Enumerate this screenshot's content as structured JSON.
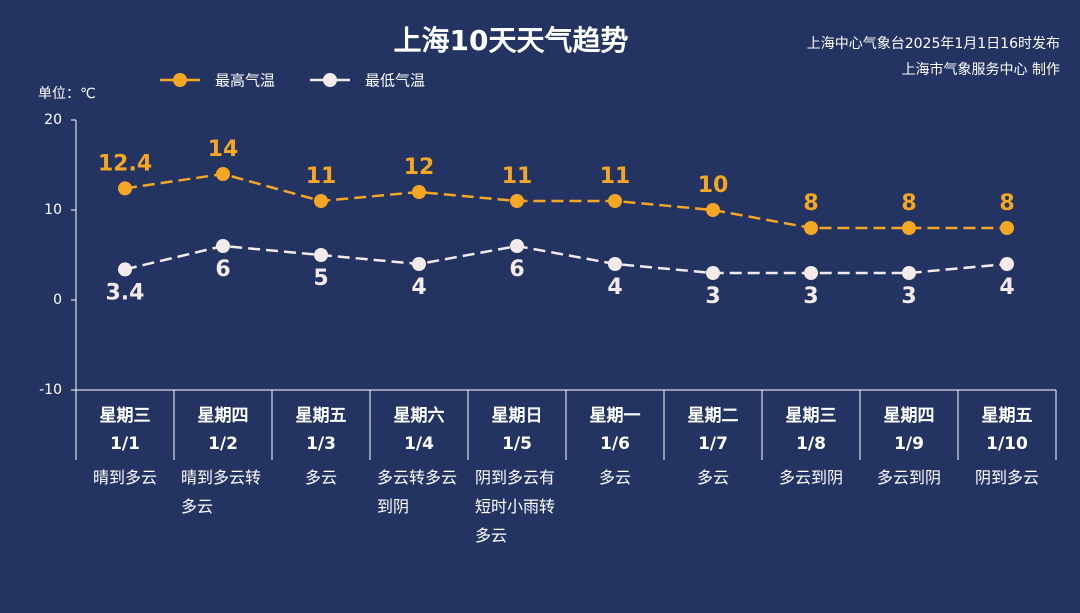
{
  "chart_data": {
    "type": "line",
    "title": "上海10天天气趋势",
    "source": [
      "上海中心气象台2025年1月1日16时发布",
      "上海市气象服务中心 制作"
    ],
    "unit": "单位：℃",
    "categories": [
      "1/1",
      "1/2",
      "1/3",
      "1/4",
      "1/5",
      "1/6",
      "1/7",
      "1/8",
      "1/9",
      "1/10"
    ],
    "weekdays": [
      "星期三",
      "星期四",
      "星期五",
      "星期六",
      "星期日",
      "星期一",
      "星期二",
      "星期三",
      "星期四",
      "星期五"
    ],
    "weather": [
      "晴到多云",
      "晴到多云转多云",
      "多云",
      "多云转多云到阴",
      "阴到多云有短时小雨转多云",
      "多云",
      "多云",
      "多云到阴",
      "多云到阴",
      "阴到多云"
    ],
    "series": [
      {
        "name": "最高气温",
        "color": "#f5a623",
        "values": [
          12.4,
          14,
          11,
          12,
          11,
          11,
          10,
          8,
          8,
          8
        ]
      },
      {
        "name": "最低气温",
        "color": "#f3eaea",
        "values": [
          3.4,
          6,
          5,
          4,
          6,
          4,
          3,
          3,
          3,
          4
        ]
      }
    ],
    "ylim": [
      -10,
      20
    ],
    "yticks": [
      -10,
      0,
      10,
      20
    ]
  }
}
